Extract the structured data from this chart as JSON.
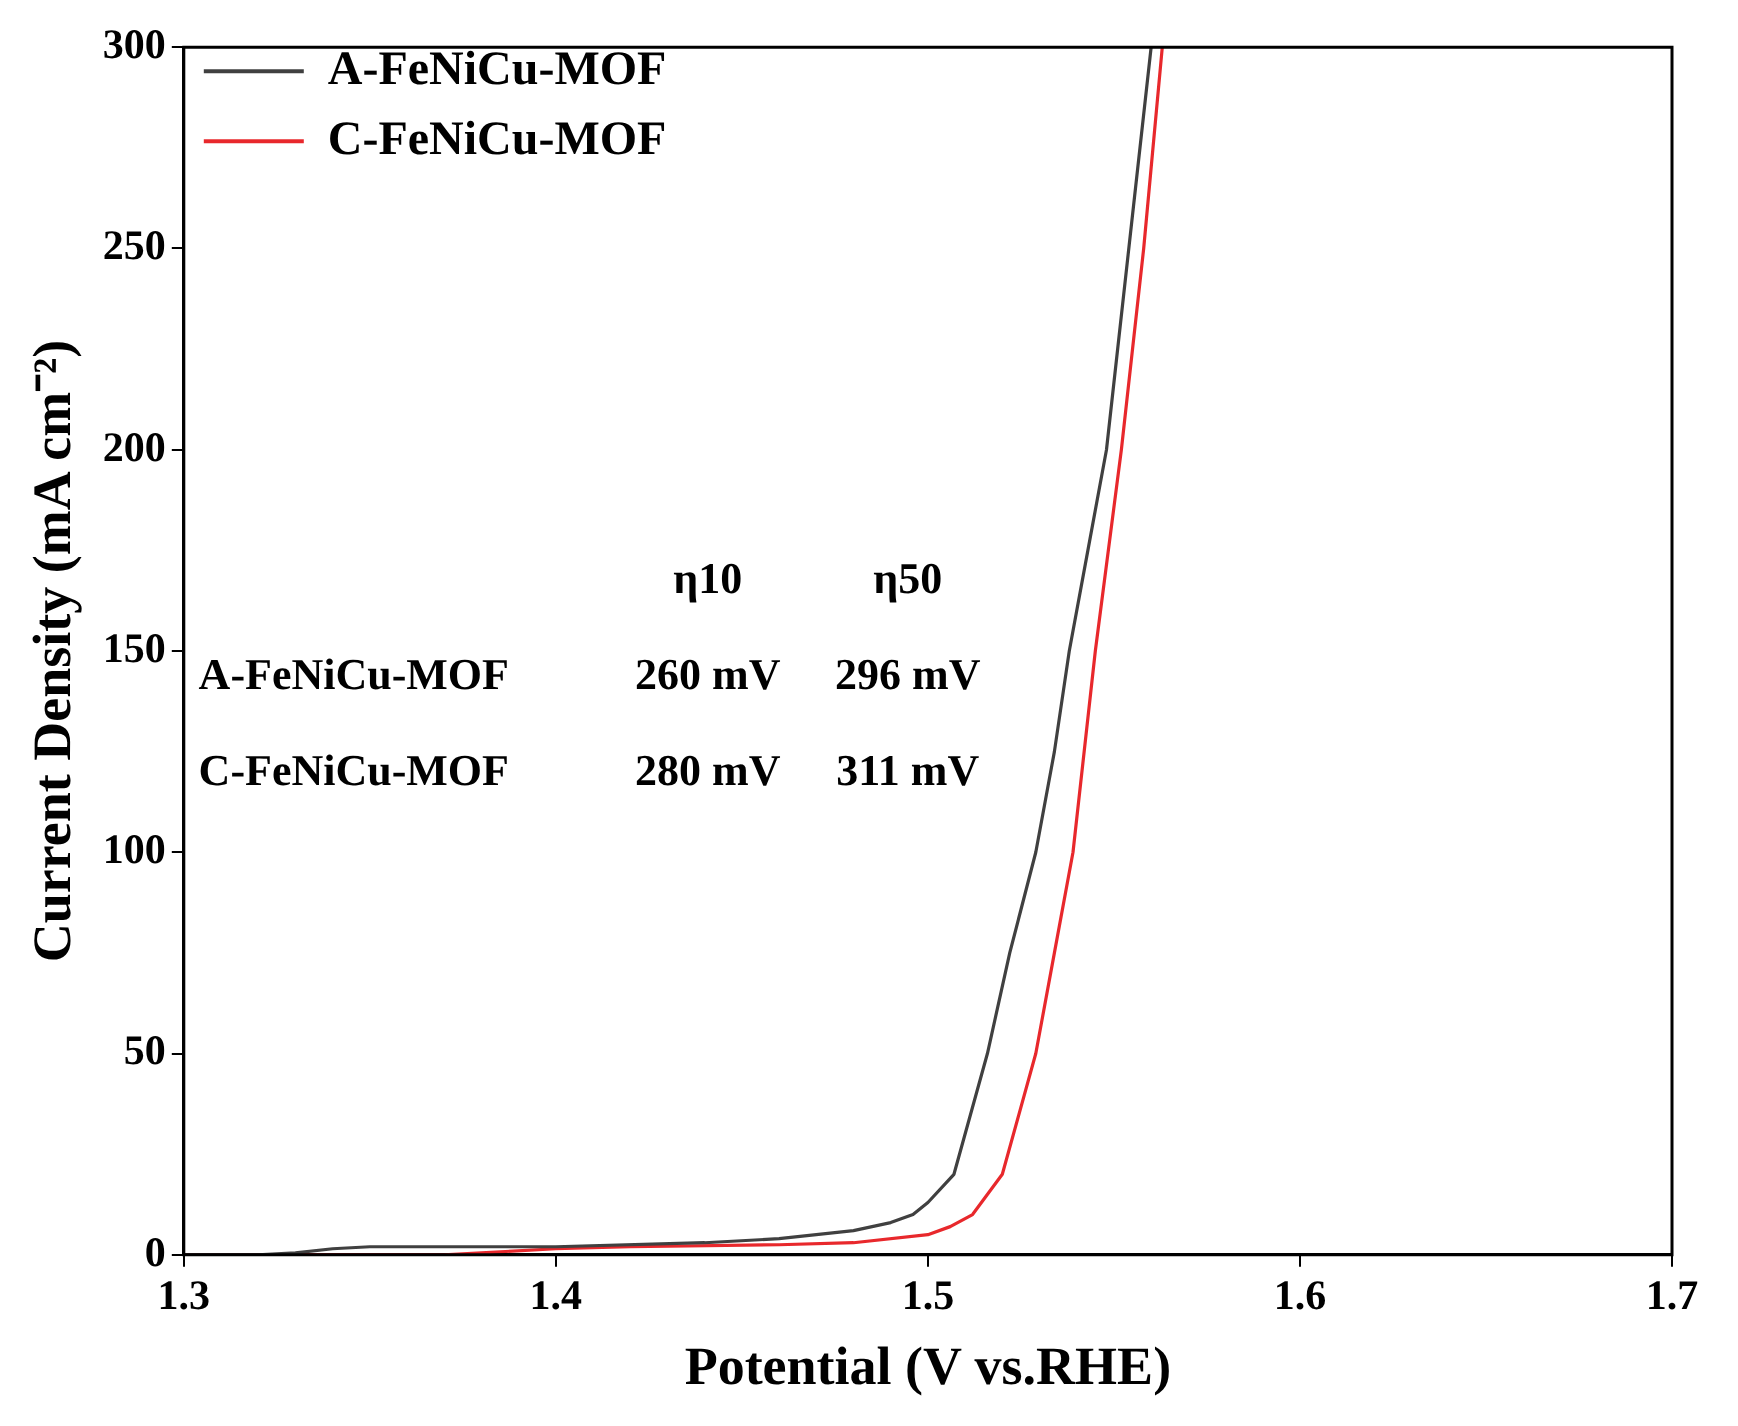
{
  "chart_data": {
    "type": "line",
    "xlabel": "Potential (V vs.RHE)",
    "ylabel": "Current Density (mA cm⁻²)",
    "xlim": [
      1.3,
      1.7
    ],
    "xticks": [
      1.3,
      1.4,
      1.5,
      1.6,
      1.7
    ],
    "ylim": [
      0,
      300
    ],
    "yticks": [
      0,
      50,
      100,
      150,
      200,
      250,
      300
    ],
    "grid": false,
    "legend": "top left",
    "marker": "none",
    "line_style": "solid",
    "series": [
      {
        "name": "A-FeNiCu-MOF",
        "color": "#404040",
        "x": [
          1.3,
          1.32,
          1.33,
          1.34,
          1.35,
          1.4,
          1.44,
          1.46,
          1.48,
          1.49,
          1.496,
          1.5,
          1.507,
          1.516,
          1.522,
          1.529,
          1.534,
          1.538,
          1.543,
          1.548,
          1.554,
          1.56
        ],
        "values": [
          0,
          0,
          0.5,
          1.5,
          2,
          2,
          3,
          4,
          6,
          8,
          10,
          13,
          20,
          50,
          75,
          100,
          125,
          150,
          175,
          200,
          250,
          300
        ]
      },
      {
        "name": "C-FeNiCu-MOF",
        "color": "#e8282c",
        "x": [
          1.3,
          1.37,
          1.38,
          1.4,
          1.42,
          1.46,
          1.48,
          1.5,
          1.506,
          1.512,
          1.52,
          1.529,
          1.534,
          1.539,
          1.545,
          1.552,
          1.558,
          1.563
        ],
        "values": [
          0,
          0,
          0.5,
          1.5,
          2,
          2.5,
          3,
          5,
          7,
          10,
          20,
          50,
          75,
          100,
          150,
          200,
          250,
          300
        ]
      }
    ],
    "annotations": [
      "η10",
      "η50",
      "A-FeNiCu-MOF",
      "260 mV",
      "296 mV",
      "C-FeNiCu-MOF",
      "280 mV",
      "311 mV"
    ]
  }
}
